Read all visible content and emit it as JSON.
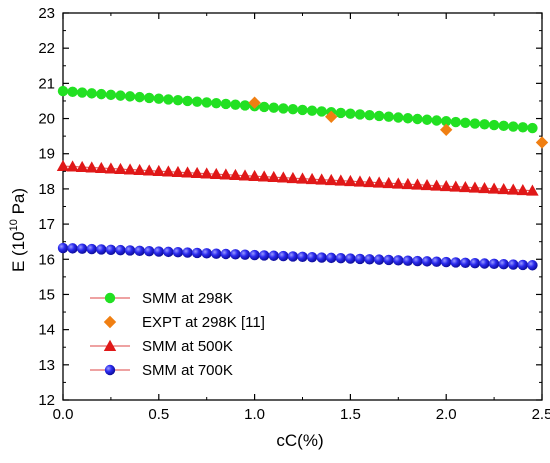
{
  "chart_data": {
    "type": "scatter",
    "xlabel": "cC(%)",
    "ylabel": {
      "main": "E (10",
      "sup": "10",
      "unit": " Pa)"
    },
    "xlim": [
      0.0,
      2.5
    ],
    "ylim": [
      12,
      23
    ],
    "x_ticks": [
      "0.0",
      "0.5",
      "1.0",
      "1.5",
      "2.0",
      "2.5"
    ],
    "y_ticks": [
      "12",
      "13",
      "14",
      "15",
      "16",
      "17",
      "18",
      "19",
      "20",
      "21",
      "22",
      "23"
    ],
    "grid": false,
    "legend_position": "bottom-left",
    "series": [
      {
        "name": "SMM at 298K",
        "marker": "circle",
        "line": true,
        "color": "#22e022",
        "line_color": "#d44",
        "x_start": 0.0,
        "x_end": 2.45,
        "x_step": 0.05,
        "y_start": 20.78,
        "y_end": 19.73
      },
      {
        "name": "EXPT at 298K [11]",
        "marker": "diamond",
        "line": false,
        "color": "#f07f12",
        "x": [
          1.0,
          1.4,
          2.0,
          2.5
        ],
        "y": [
          20.45,
          20.05,
          19.68,
          19.32
        ]
      },
      {
        "name": "SMM at 500K",
        "marker": "triangle",
        "line": true,
        "color": "#e01818",
        "line_color": "#d44",
        "x_start": 0.0,
        "x_end": 2.45,
        "x_step": 0.05,
        "y_start": 18.65,
        "y_end": 17.95
      },
      {
        "name": "SMM at 700K",
        "marker": "sphere",
        "line": true,
        "color": "#1c1ce0",
        "line_color": "#d44",
        "x_start": 0.0,
        "x_end": 2.45,
        "x_step": 0.05,
        "y_start": 16.32,
        "y_end": 15.83
      }
    ]
  }
}
